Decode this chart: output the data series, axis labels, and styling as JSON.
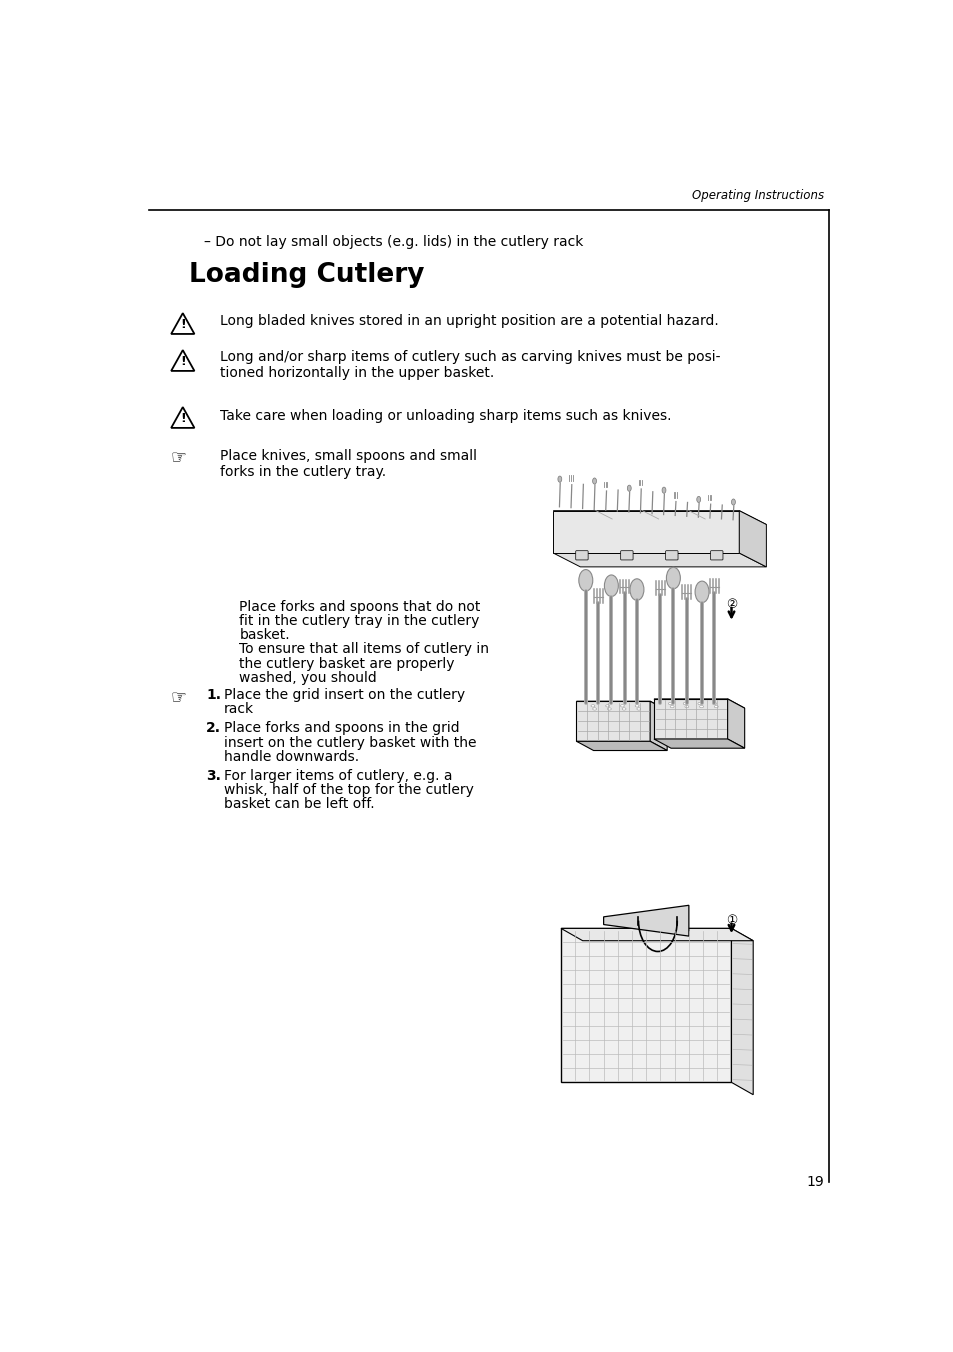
{
  "page_title": "Operating Instructions",
  "page_number": "19",
  "background_color": "#ffffff",
  "text_color": "#000000",
  "bullet_line": "– Do not lay small objects (e.g. lids) in the cutlery rack",
  "section_title": "Loading Cutlery",
  "warnings": [
    "Long bladed knives stored in an upright position are a potential hazard.",
    "Long and/or sharp items of cutlery such as carving knives must be posi-\ntioned horizontally in the upper basket.",
    "Take care when loading or unloading sharp items such as knives."
  ],
  "finger_note": "Place knives, small spoons and small\nforks in the cutlery tray.",
  "body_text_1a": "Place forks and spoons that do not",
  "body_text_1b": "fit in the cutlery tray in the cutlery",
  "body_text_1c": "basket.",
  "body_text_1d": "To ensure that all items of cutlery in",
  "body_text_1e": "the cutlery basket are properly",
  "body_text_1f": "washed, you should",
  "item1a": "Place the grid insert on the cutlery",
  "item1b": "rack",
  "item2a": "Place forks and spoons in the grid",
  "item2b": "insert on the cutlery basket with the",
  "item2c": "handle downwards.",
  "item3a": "For larger items of cutlery, e.g. a",
  "item3b": "whisk, half of the top for the cutlery",
  "item3c": "basket can be left off.",
  "gray_light": "#e8e8e8",
  "gray_med": "#c8c8c8",
  "gray_dark": "#999999"
}
